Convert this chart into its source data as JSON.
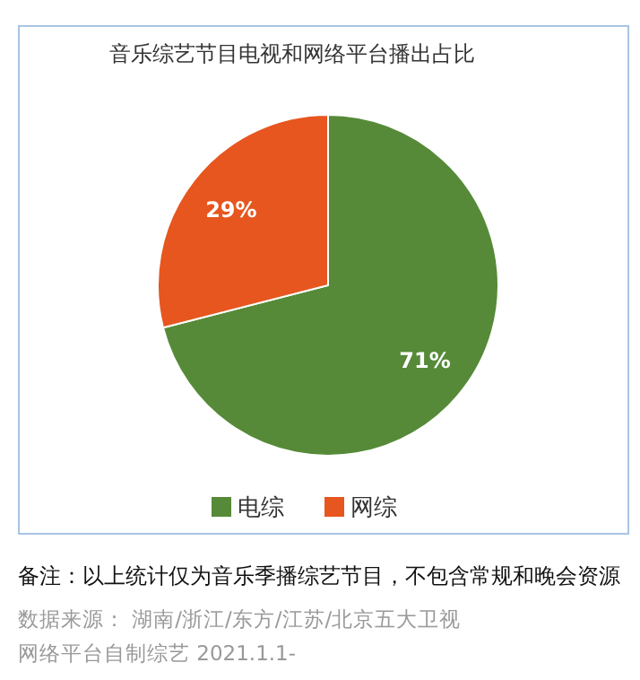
{
  "chart_data": {
    "type": "pie",
    "title": "音乐综艺节目电视和网络平台播出占比",
    "categories": [
      "电综",
      "网综"
    ],
    "values": [
      71,
      29
    ],
    "colors": [
      "#568a38",
      "#e6561e"
    ],
    "value_labels": [
      "71%",
      "29%"
    ],
    "legend": "bottom",
    "annotations": [
      "备注：以上统计仅为音乐季播综艺节目，不包含常规和晚会资源",
      "数据来源： 湖南/浙江/东方/江苏/北京五大卫视",
      "网络平台自制综艺  2021.1.1-"
    ]
  }
}
